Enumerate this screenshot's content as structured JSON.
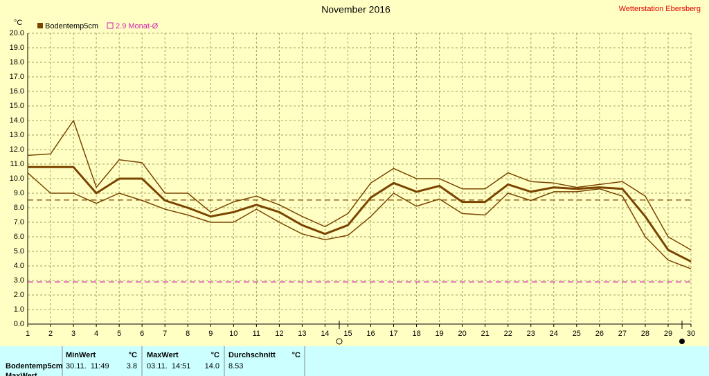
{
  "header": {
    "station": "Wetterstation Ebersberg"
  },
  "chart_data": {
    "type": "line",
    "title": "November 2016",
    "y_unit": "°C",
    "x": [
      1,
      2,
      3,
      4,
      5,
      6,
      7,
      8,
      9,
      10,
      11,
      12,
      13,
      14,
      15,
      16,
      17,
      18,
      19,
      20,
      21,
      22,
      23,
      24,
      25,
      26,
      27,
      28,
      29,
      30
    ],
    "xlim": [
      1,
      30
    ],
    "xticks": [
      1,
      2,
      3,
      4,
      5,
      6,
      7,
      8,
      9,
      10,
      11,
      12,
      13,
      14,
      15,
      16,
      17,
      18,
      19,
      20,
      21,
      22,
      23,
      24,
      25,
      26,
      27,
      28,
      29,
      30
    ],
    "ylim": [
      0,
      20
    ],
    "yticks": [
      {
        "value": 0,
        "label": "0.0"
      },
      {
        "value": 1,
        "label": "1.0"
      },
      {
        "value": 2,
        "label": "2.0"
      },
      {
        "value": 3,
        "label": "3.0"
      },
      {
        "value": 4,
        "label": "4.0"
      },
      {
        "value": 5,
        "label": "5.0"
      },
      {
        "value": 6,
        "label": "6.0"
      },
      {
        "value": 7,
        "label": "7.0"
      },
      {
        "value": 8,
        "label": "8.0"
      },
      {
        "value": 9,
        "label": "9.0"
      },
      {
        "value": 10,
        "label": "10.0"
      },
      {
        "value": 11,
        "label": "11.0"
      },
      {
        "value": 12,
        "label": "12.0"
      },
      {
        "value": 13,
        "label": "13.0"
      },
      {
        "value": 14,
        "label": "14.0"
      },
      {
        "value": 15,
        "label": "15.0"
      },
      {
        "value": 16,
        "label": "16.0"
      },
      {
        "value": 17,
        "label": "17.0"
      },
      {
        "value": 18,
        "label": "18.0"
      },
      {
        "value": 19,
        "label": "19.0"
      },
      {
        "value": 20,
        "label": "20.0"
      }
    ],
    "grid": true,
    "series": [
      {
        "name": "Bodentemp5cm",
        "color": "#7a4400",
        "width": 3,
        "values": [
          10.8,
          10.8,
          10.8,
          9.0,
          10.0,
          10.0,
          8.5,
          8.0,
          7.4,
          7.7,
          8.2,
          7.7,
          6.8,
          6.2,
          6.8,
          8.7,
          9.7,
          9.1,
          9.5,
          8.4,
          8.4,
          9.6,
          9.1,
          9.4,
          9.3,
          9.4,
          9.3,
          7.4,
          5.1,
          4.3
        ]
      },
      {
        "color": "#7a4400",
        "width": 1.5,
        "values": [
          11.6,
          11.7,
          14.0,
          9.4,
          11.3,
          11.1,
          9.0,
          9.0,
          7.7,
          8.4,
          8.8,
          8.2,
          7.4,
          6.7,
          7.6,
          9.7,
          10.7,
          10.0,
          10.0,
          9.3,
          9.3,
          10.4,
          9.8,
          9.7,
          9.4,
          9.6,
          9.8,
          8.8,
          6.0,
          5.1
        ]
      },
      {
        "color": "#7a4400",
        "width": 1.5,
        "values": [
          10.4,
          9.0,
          9.0,
          8.3,
          9.0,
          8.5,
          7.9,
          7.5,
          7.0,
          7.0,
          7.9,
          7.0,
          6.2,
          5.8,
          6.1,
          7.4,
          9.0,
          8.1,
          8.6,
          7.6,
          7.5,
          9.0,
          8.5,
          9.1,
          9.1,
          9.3,
          8.8,
          6.0,
          4.4,
          3.8
        ]
      }
    ],
    "reference_lines": [
      {
        "value": 8.53,
        "color": "#7a4400"
      },
      {
        "value": 2.9,
        "label": "2.9 Monat-Ø",
        "color": "#d020b0"
      }
    ]
  },
  "table": {
    "columns": [
      "MinWert",
      "°C",
      "MaxWert",
      "°C",
      "Durchschnitt",
      "°C"
    ],
    "rows": [
      [
        "Bodentemp5cm",
        "30.11.  11:49",
        "3.8",
        "03.11.  14:51",
        "14.0",
        "8.53"
      ],
      [
        "MaxWert"
      ]
    ]
  }
}
